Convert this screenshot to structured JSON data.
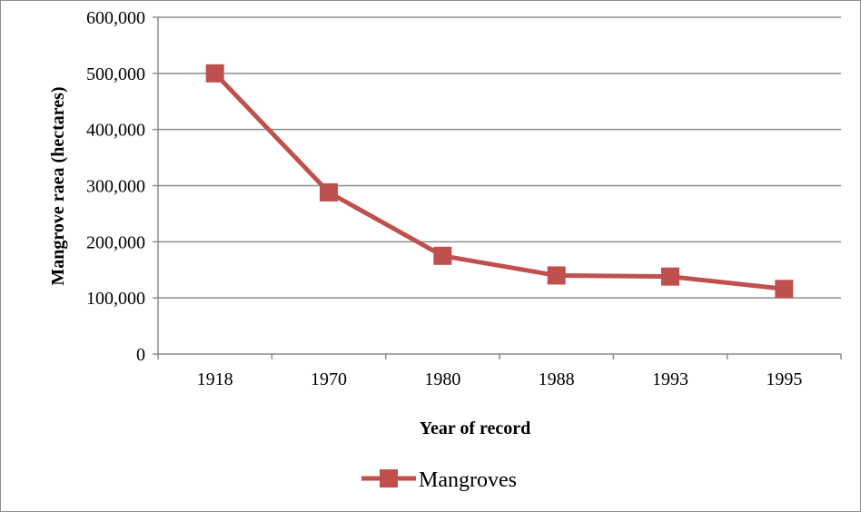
{
  "chart_data": {
    "type": "line",
    "categories": [
      "1918",
      "1970",
      "1980",
      "1988",
      "1993",
      "1995"
    ],
    "series": [
      {
        "name": "Mangroves",
        "values": [
          500000,
          288000,
          175000,
          140000,
          138000,
          116000
        ],
        "color": "#c0504d"
      }
    ],
    "ylim": [
      0,
      600000
    ],
    "yticks": [
      "0",
      "100,000",
      "200,000",
      "300,000",
      "400,000",
      "500,000",
      "600,000"
    ],
    "xlabel": "Year of record",
    "ylabel": "Mangrove raea (hectares)",
    "grid": true,
    "legend_position": "bottom",
    "colors": {
      "grid": "#8c8c8c",
      "axis": "#8c8c8c",
      "series": "#c0504d"
    }
  }
}
